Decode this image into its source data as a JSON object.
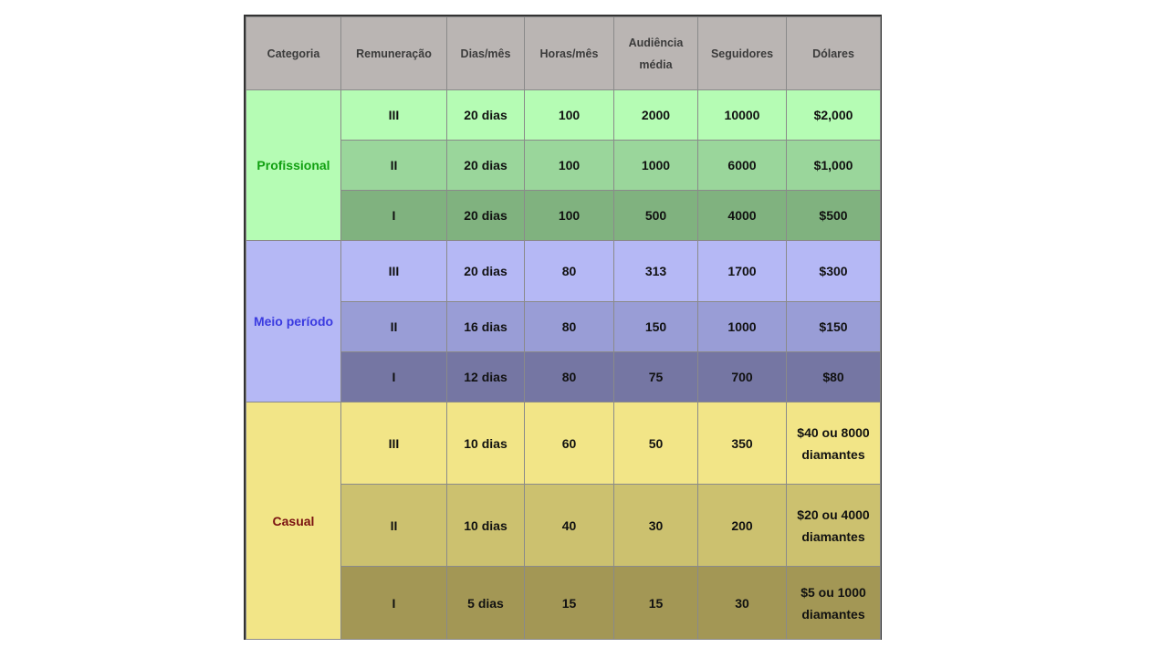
{
  "table": {
    "headers": [
      "Categoria",
      "Remuneração",
      "Dias/mês",
      "Horas/mês",
      "Audiência média",
      "Seguidores",
      "Dólares"
    ],
    "groups": [
      {
        "category": "Profissional",
        "category_bg": "#b5fcb4",
        "category_color": "#11a011",
        "rows": [
          {
            "bg": "#b5fcb4",
            "cells": [
              "III",
              "20 dias",
              "100",
              "2000",
              "10000",
              "$2,000"
            ]
          },
          {
            "bg": "#9ad69b",
            "cells": [
              "II",
              "20 dias",
              "100",
              "1000",
              "6000",
              "$1,000"
            ]
          },
          {
            "bg": "#80b27f",
            "cells": [
              "I",
              "20 dias",
              "100",
              "500",
              "4000",
              "$500"
            ]
          }
        ]
      },
      {
        "category": "Meio período",
        "category_bg": "#b5b8f5",
        "category_color": "#3a3ae0",
        "rows": [
          {
            "bg": "#b5b8f5",
            "cells": [
              "III",
              "20 dias",
              "80",
              "313",
              "1700",
              "$300"
            ]
          },
          {
            "bg": "#999dd6",
            "cells": [
              "II",
              "16 dias",
              "80",
              "150",
              "1000",
              "$150"
            ]
          },
          {
            "bg": "#7576a3",
            "cells": [
              "I",
              "12 dias",
              "80",
              "75",
              "700",
              "$80"
            ]
          }
        ]
      },
      {
        "category": "Casual",
        "category_bg": "#f2e587",
        "category_color": "#7a1111",
        "rows": [
          {
            "bg": "#f2e587",
            "cells": [
              "III",
              "10 dias",
              "60",
              "50",
              "350",
              "$40 ou 8000 diamantes"
            ]
          },
          {
            "bg": "#ccc16f",
            "cells": [
              "II",
              "10 dias",
              "40",
              "30",
              "200",
              "$20 ou 4000 diamantes"
            ]
          },
          {
            "bg": "#a39755",
            "cells": [
              "I",
              "5 dias",
              "15",
              "15",
              "30",
              "$5 ou 1000 diamantes"
            ]
          }
        ]
      }
    ]
  }
}
